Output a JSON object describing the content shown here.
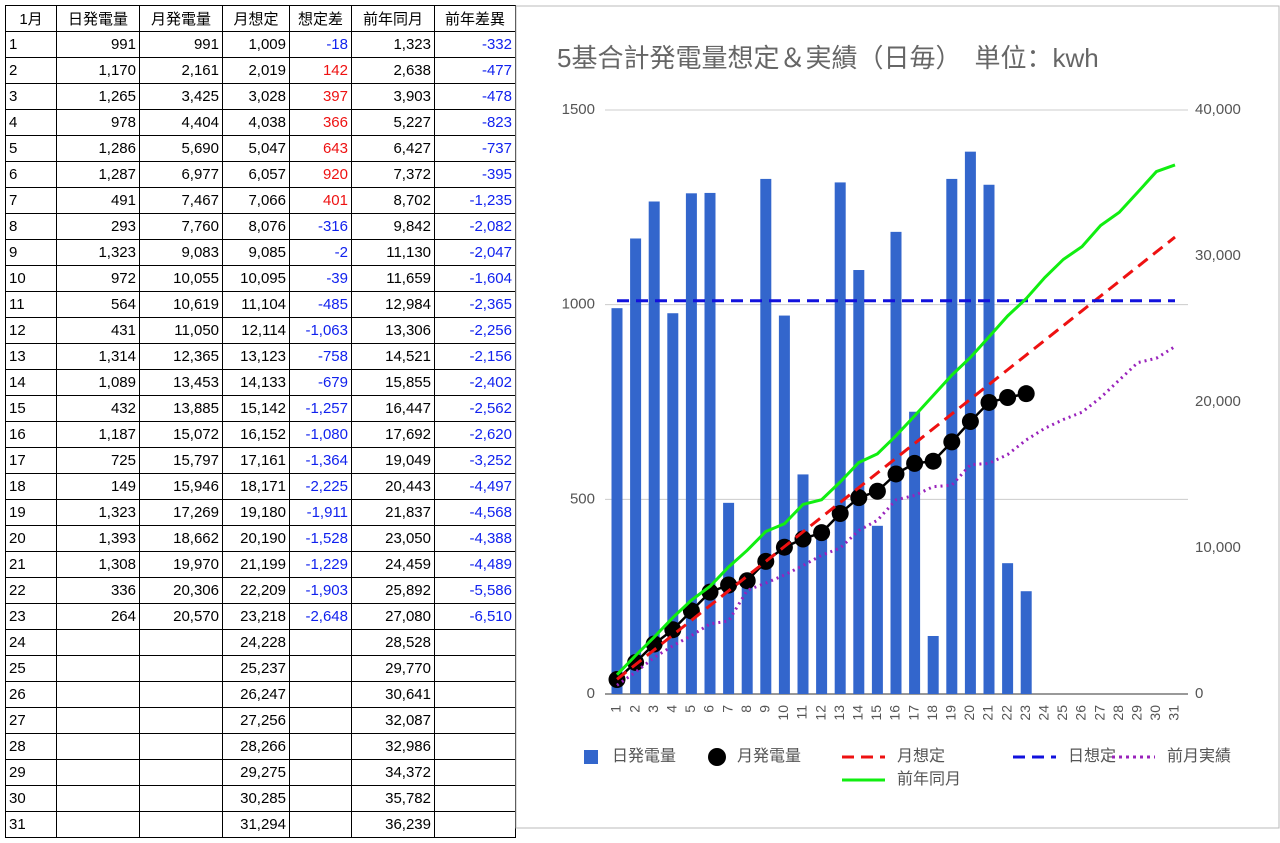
{
  "table": {
    "header": [
      "1月",
      "日発電量",
      "月発電量",
      "月想定",
      "想定差",
      "前年同月",
      "前年差異"
    ],
    "rows": [
      [
        "1",
        "991",
        "991",
        "1,009",
        "-18",
        "1,323",
        "-332"
      ],
      [
        "2",
        "1,170",
        "2,161",
        "2,019",
        "142",
        "2,638",
        "-477"
      ],
      [
        "3",
        "1,265",
        "3,425",
        "3,028",
        "397",
        "3,903",
        "-478"
      ],
      [
        "4",
        "978",
        "4,404",
        "4,038",
        "366",
        "5,227",
        "-823"
      ],
      [
        "5",
        "1,286",
        "5,690",
        "5,047",
        "643",
        "6,427",
        "-737"
      ],
      [
        "6",
        "1,287",
        "6,977",
        "6,057",
        "920",
        "7,372",
        "-395"
      ],
      [
        "7",
        "491",
        "7,467",
        "7,066",
        "401",
        "8,702",
        "-1,235"
      ],
      [
        "8",
        "293",
        "7,760",
        "8,076",
        "-316",
        "9,842",
        "-2,082"
      ],
      [
        "9",
        "1,323",
        "9,083",
        "9,085",
        "-2",
        "11,130",
        "-2,047"
      ],
      [
        "10",
        "972",
        "10,055",
        "10,095",
        "-39",
        "11,659",
        "-1,604"
      ],
      [
        "11",
        "564",
        "10,619",
        "11,104",
        "-485",
        "12,984",
        "-2,365"
      ],
      [
        "12",
        "431",
        "11,050",
        "12,114",
        "-1,063",
        "13,306",
        "-2,256"
      ],
      [
        "13",
        "1,314",
        "12,365",
        "13,123",
        "-758",
        "14,521",
        "-2,156"
      ],
      [
        "14",
        "1,089",
        "13,453",
        "14,133",
        "-679",
        "15,855",
        "-2,402"
      ],
      [
        "15",
        "432",
        "13,885",
        "15,142",
        "-1,257",
        "16,447",
        "-2,562"
      ],
      [
        "16",
        "1,187",
        "15,072",
        "16,152",
        "-1,080",
        "17,692",
        "-2,620"
      ],
      [
        "17",
        "725",
        "15,797",
        "17,161",
        "-1,364",
        "19,049",
        "-3,252"
      ],
      [
        "18",
        "149",
        "15,946",
        "18,171",
        "-2,225",
        "20,443",
        "-4,497"
      ],
      [
        "19",
        "1,323",
        "17,269",
        "19,180",
        "-1,911",
        "21,837",
        "-4,568"
      ],
      [
        "20",
        "1,393",
        "18,662",
        "20,190",
        "-1,528",
        "23,050",
        "-4,388"
      ],
      [
        "21",
        "1,308",
        "19,970",
        "21,199",
        "-1,229",
        "24,459",
        "-4,489"
      ],
      [
        "22",
        "336",
        "20,306",
        "22,209",
        "-1,903",
        "25,892",
        "-5,586"
      ],
      [
        "23",
        "264",
        "20,570",
        "23,218",
        "-2,648",
        "27,080",
        "-6,510"
      ],
      [
        "24",
        null,
        null,
        "24,228",
        null,
        "28,528",
        null
      ],
      [
        "25",
        null,
        null,
        "25,237",
        null,
        "29,770",
        null
      ],
      [
        "26",
        null,
        null,
        "26,247",
        null,
        "30,641",
        null
      ],
      [
        "27",
        null,
        null,
        "27,256",
        null,
        "32,087",
        null
      ],
      [
        "28",
        null,
        null,
        "28,266",
        null,
        "32,986",
        null
      ],
      [
        "29",
        null,
        null,
        "29,275",
        null,
        "34,372",
        null
      ],
      [
        "30",
        null,
        null,
        "30,285",
        null,
        "35,782",
        null
      ],
      [
        "31",
        null,
        null,
        "31,294",
        null,
        "36,239",
        null
      ]
    ]
  },
  "chart_data": {
    "type": "combo",
    "title": "5基合計発電量想定＆実績（日毎）　単位：kwh",
    "categories": [
      "1",
      "2",
      "3",
      "4",
      "5",
      "6",
      "7",
      "8",
      "9",
      "10",
      "11",
      "12",
      "13",
      "14",
      "15",
      "16",
      "17",
      "18",
      "19",
      "20",
      "21",
      "22",
      "23",
      "24",
      "25",
      "26",
      "27",
      "28",
      "29",
      "30",
      "31"
    ],
    "ylim": [
      0,
      1500
    ],
    "yticks": [
      0,
      500,
      1000,
      1500
    ],
    "y2lim": [
      0,
      40000
    ],
    "y2ticks": [
      0,
      {
        "value": 10000,
        "label": "10,000"
      },
      {
        "value": 20000,
        "label": "20,000"
      },
      {
        "value": 30000,
        "label": "30,000"
      },
      {
        "value": 40000,
        "label": "40,000"
      }
    ],
    "grid": true,
    "series": [
      {
        "name": "日発電量",
        "type": "bar",
        "color": "#3366cc",
        "values": [
          991,
          1170,
          1265,
          978,
          1286,
          1287,
          491,
          293,
          1323,
          972,
          564,
          431,
          1314,
          1089,
          432,
          1187,
          725,
          149,
          1323,
          1393,
          1308,
          336,
          264,
          null,
          null,
          null,
          null,
          null,
          null,
          null,
          null
        ]
      },
      {
        "name": "月発電量",
        "type": "marker-line",
        "color": "#000000",
        "axis": "y2",
        "values": [
          991,
          2161,
          3425,
          4404,
          5690,
          6977,
          7467,
          7760,
          9083,
          10055,
          10619,
          11050,
          12365,
          13453,
          13885,
          15072,
          15797,
          15946,
          17269,
          18662,
          19970,
          20306,
          20570,
          null,
          null,
          null,
          null,
          null,
          null,
          null,
          null
        ]
      },
      {
        "name": "月想定",
        "type": "dashed",
        "color": "#ee1111",
        "axis": "y2",
        "values": [
          1009,
          2019,
          3028,
          4038,
          5047,
          6057,
          7066,
          8076,
          9085,
          10095,
          11104,
          12114,
          13123,
          14133,
          15142,
          16152,
          17161,
          18171,
          19180,
          20190,
          21199,
          22209,
          23218,
          24228,
          25237,
          26247,
          27256,
          28266,
          29275,
          30285,
          31294
        ]
      },
      {
        "name": "日想定",
        "type": "dashed",
        "color": "#1111dd",
        "values": [
          1010,
          1010,
          1010,
          1010,
          1010,
          1010,
          1010,
          1010,
          1010,
          1010,
          1010,
          1010,
          1010,
          1010,
          1010,
          1010,
          1010,
          1010,
          1010,
          1010,
          1010,
          1010,
          1010,
          1010,
          1010,
          1010,
          1010,
          1010,
          1010,
          1010,
          1010
        ]
      },
      {
        "name": "前月実績",
        "type": "dotted",
        "color": "#9922bb",
        "axis": "y2",
        "values": [
          600,
          1500,
          2500,
          3300,
          4000,
          4800,
          5000,
          7100,
          7600,
          8150,
          8800,
          9500,
          10000,
          11200,
          11900,
          13300,
          13600,
          14200,
          14300,
          15700,
          15800,
          16400,
          17400,
          18200,
          18800,
          19300,
          20300,
          21500,
          22700,
          23000,
          23800
        ]
      },
      {
        "name": "前年同月",
        "type": "line",
        "color": "#11ee11",
        "axis": "y2",
        "values": [
          1323,
          2638,
          3903,
          5227,
          6427,
          7372,
          8702,
          9842,
          11130,
          11659,
          12984,
          13306,
          14521,
          15855,
          16447,
          17692,
          19049,
          20443,
          21837,
          23050,
          24459,
          25892,
          27080,
          28528,
          29770,
          30641,
          32087,
          32986,
          34372,
          35782,
          36239
        ]
      }
    ]
  }
}
